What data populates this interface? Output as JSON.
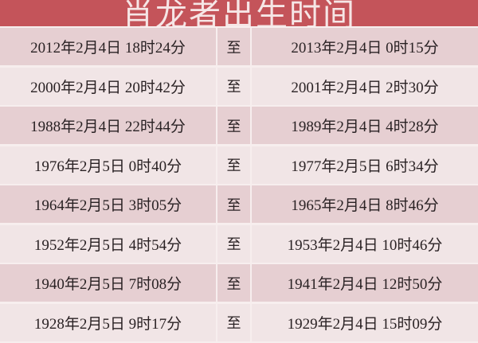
{
  "title": "肖龙者出生时间",
  "separator": "至",
  "colors": {
    "header": "#c4545a",
    "row_dark": "#e6cfd2",
    "row_light": "#f1e5e6"
  },
  "rows": [
    {
      "start": "2012年2月4日 18时24分",
      "end": "2013年2月4日 0时15分"
    },
    {
      "start": "2000年2月4日 20时42分",
      "end": "2001年2月4日 2时30分"
    },
    {
      "start": "1988年2月4日 22时44分",
      "end": "1989年2月4日 4时28分"
    },
    {
      "start": "1976年2月5日 0时40分",
      "end": "1977年2月5日 6时34分"
    },
    {
      "start": "1964年2月5日 3时05分",
      "end": "1965年2月4日 8时46分"
    },
    {
      "start": "1952年2月5日 4时54分",
      "end": "1953年2月4日 10时46分"
    },
    {
      "start": "1940年2月5日 7时08分",
      "end": "1941年2月4日 12时50分"
    },
    {
      "start": "1928年2月5日 9时17分",
      "end": "1929年2月4日 15时09分"
    }
  ]
}
